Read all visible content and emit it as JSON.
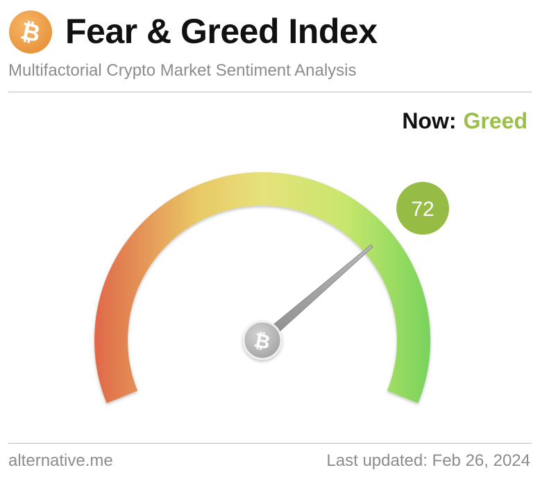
{
  "header": {
    "logo_icon": "bitcoin-icon",
    "logo_glyph": "₿",
    "title": "Fear & Greed Index",
    "subtitle": "Multifactorial Crypto Market Sentiment Analysis"
  },
  "status": {
    "now_label": "Now:",
    "now_value": "Greed",
    "now_color": "#9bbf4a"
  },
  "gauge": {
    "value": 72,
    "value_text": "72",
    "min": 0,
    "max": 100,
    "badge_color": "#97bc45",
    "hub_icon": "bitcoin-icon",
    "hub_glyph": "₿",
    "colors": [
      "#e06a4a",
      "#e9c866",
      "#e6e27a",
      "#c6e66c",
      "#78d35c"
    ]
  },
  "footer": {
    "source": "alternative.me",
    "last_updated": "Last updated: Feb 26, 2024"
  }
}
